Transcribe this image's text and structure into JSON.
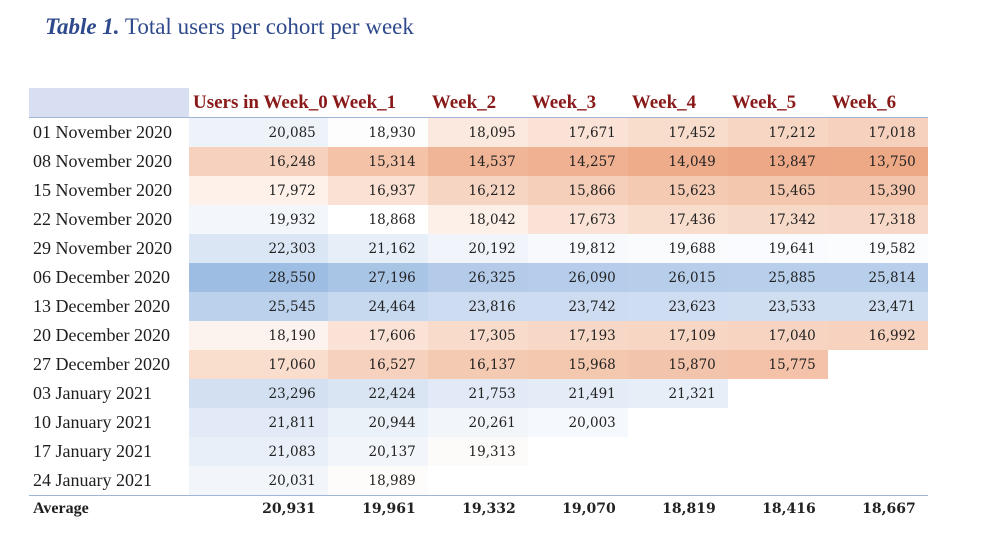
{
  "title": {
    "number": "Table 1.",
    "text": "Total users per cohort per week"
  },
  "columns": [
    "Users in Week_0",
    "Week_1",
    "Week_2",
    "Week_3",
    "Week_4",
    "Week_5",
    "Week_6"
  ],
  "rows": [
    {
      "label": "01 November 2020",
      "values": [
        "20,085",
        "18,930",
        "18,095",
        "17,671",
        "17,452",
        "17,212",
        "17,018"
      ],
      "colors": [
        "#eef3fa",
        "#fdfdfd",
        "#fbe8de",
        "#fae3d6",
        "#f8dccc",
        "#f7d6c3",
        "#f6d1bd"
      ]
    },
    {
      "label": "08 November 2020",
      "values": [
        "16,248",
        "15,314",
        "14,537",
        "14,257",
        "14,049",
        "13,847",
        "13,750"
      ],
      "colors": [
        "#f6d2be",
        "#f3c2a7",
        "#f0b596",
        "#efb191",
        "#eeac8b",
        "#eda987",
        "#eda886"
      ]
    },
    {
      "label": "15 November 2020",
      "values": [
        "17,972",
        "16,937",
        "16,212",
        "15,866",
        "15,623",
        "15,465",
        "15,390"
      ],
      "colors": [
        "#fdf1ea",
        "#fae1d3",
        "#f7d5c3",
        "#f5cfba",
        "#f4cab3",
        "#f3c6ae",
        "#f3c5ac"
      ]
    },
    {
      "label": "22 November 2020",
      "values": [
        "19,932",
        "18,868",
        "18,042",
        "17,673",
        "17,436",
        "17,342",
        "17,318"
      ],
      "colors": [
        "#f3f7fc",
        "#ffffff",
        "#fcf0e9",
        "#fae3d6",
        "#f8ddcd",
        "#f7d9c8",
        "#f7d8c7"
      ]
    },
    {
      "label": "29 November 2020",
      "values": [
        "22,303",
        "21,162",
        "20,192",
        "19,812",
        "19,688",
        "19,641",
        "19,582"
      ],
      "colors": [
        "#dbe6f4",
        "#e6eef8",
        "#f1f5fb",
        "#f7f9fd",
        "#f9fbfd",
        "#fafbfe",
        "#fbfcfe"
      ]
    },
    {
      "label": "06 December 2020",
      "values": [
        "28,550",
        "27,196",
        "26,325",
        "26,090",
        "26,015",
        "25,885",
        "25,814"
      ],
      "colors": [
        "#9dbde3",
        "#a9c5e6",
        "#b3cbe9",
        "#b5cdea",
        "#b6ceea",
        "#b7cfeb",
        "#b8cfeb"
      ]
    },
    {
      "label": "13 December 2020",
      "values": [
        "25,545",
        "24,464",
        "23,816",
        "23,742",
        "23,623",
        "23,533",
        "23,471"
      ],
      "colors": [
        "#bcd2ec",
        "#c7d9ef",
        "#cddcf1",
        "#cedcf1",
        "#cfddf2",
        "#d0def2",
        "#d0def2"
      ]
    },
    {
      "label": "20 December 2020",
      "values": [
        "18,190",
        "17,606",
        "17,305",
        "17,193",
        "17,109",
        "17,040",
        "16,992"
      ],
      "colors": [
        "#fdf3ee",
        "#fae3d6",
        "#f8dbcb",
        "#f7d8c7",
        "#f7d6c4",
        "#f6d4c1",
        "#f6d2bf"
      ]
    },
    {
      "label": "27 December 2020",
      "values": [
        "17,060",
        "16,527",
        "16,137",
        "15,968",
        "15,870",
        "15,775",
        ""
      ],
      "colors": [
        "#f9ddcd",
        "#f6d1bd",
        "#f5cab3",
        "#f4c7af",
        "#f3c4ac",
        "#f3c2a9",
        ""
      ]
    },
    {
      "label": "03 January 2021",
      "values": [
        "23,296",
        "22,424",
        "21,753",
        "21,491",
        "21,321",
        "",
        ""
      ],
      "colors": [
        "#d2e0f2",
        "#dae5f4",
        "#e1eaf6",
        "#e4ecf7",
        "#e6eef8",
        "",
        ""
      ]
    },
    {
      "label": "10 January 2021",
      "values": [
        "21,811",
        "20,944",
        "20,261",
        "20,003",
        "",
        "",
        ""
      ],
      "colors": [
        "#e1eaf6",
        "#ebf1f9",
        "#f2f6fb",
        "#f5f8fc",
        "",
        "",
        ""
      ]
    },
    {
      "label": "17 January 2021",
      "values": [
        "21,083",
        "20,137",
        "19,313",
        "",
        "",
        "",
        ""
      ],
      "colors": [
        "#e8eff8",
        "#f2f6fb",
        "#fdfbfa",
        "",
        "",
        "",
        ""
      ]
    },
    {
      "label": "24 January 2021",
      "values": [
        "20,031",
        "18,989",
        "",
        "",
        "",
        "",
        ""
      ],
      "colors": [
        "#f2f6fb",
        "#fefcfb",
        "",
        "",
        "",
        "",
        ""
      ]
    }
  ],
  "average": {
    "label": "Average",
    "values": [
      "20,931",
      "19,961",
      "19,332",
      "19,070",
      "18,819",
      "18,416",
      "18,667"
    ]
  },
  "header_corner_color": "#d8dff2",
  "title_color": "#2f4a8c",
  "header_text_color": "#8a1a1a"
}
